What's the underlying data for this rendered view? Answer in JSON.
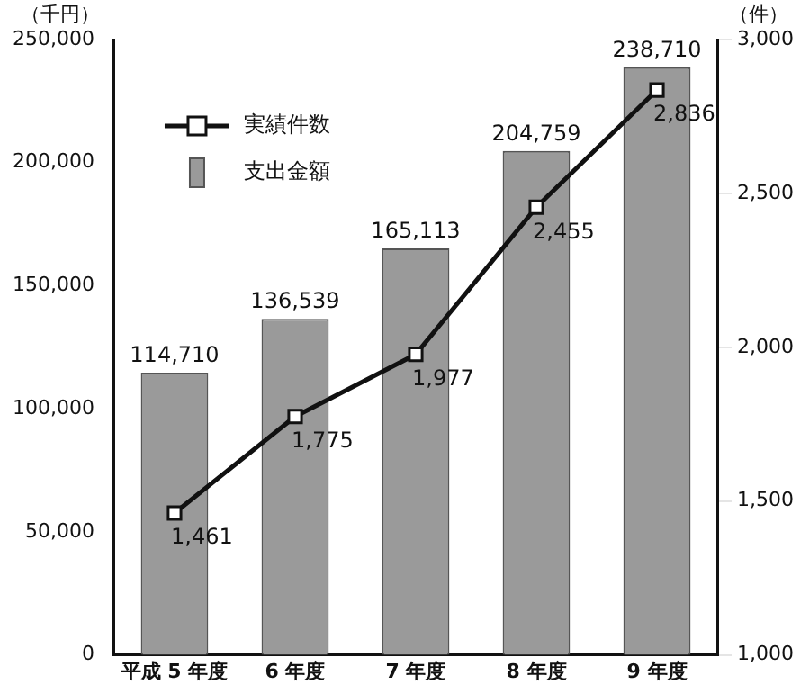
{
  "chart_data": {
    "type": "bar",
    "ylabel": "（千円）",
    "y2label": "（件）",
    "categories": [
      "平成 5 年度",
      "6 年度",
      "7 年度",
      "8 年度",
      "9 年度"
    ],
    "series": [
      {
        "name": "支出金額",
        "color": "#9a9a9a",
        "values": [
          114710,
          136539,
          165113,
          204759,
          238710
        ],
        "value_labels": [
          "114,710",
          "136,539",
          "165,113",
          "204,759",
          "238,710"
        ]
      },
      {
        "name": "実績件数",
        "type": "line",
        "axis": "y2",
        "color": "#111111",
        "marker": "square",
        "values": [
          1461,
          1775,
          1977,
          2455,
          2836
        ],
        "value_labels": [
          "1,461",
          "1,775",
          "1,977",
          "2,455",
          "2,836"
        ]
      }
    ],
    "ylim": [
      0,
      250000
    ],
    "yticks": [
      0,
      {
        "value": 50000,
        "label": "50,000"
      },
      {
        "value": 100000,
        "label": "100,000"
      },
      {
        "value": 150000,
        "label": "150,000"
      },
      {
        "value": 200000,
        "label": "200,000"
      },
      {
        "value": 250000,
        "label": "250,000"
      }
    ],
    "y2lim": [
      1000,
      3000
    ],
    "y2ticks": [
      {
        "value": 1000,
        "label": "1,000"
      },
      {
        "value": 1500,
        "label": "1,500"
      },
      {
        "value": 2000,
        "label": "2,000"
      },
      {
        "value": 2500,
        "label": "2,500"
      },
      {
        "value": 3000,
        "label": "3,000"
      }
    ],
    "legend": "top left",
    "grid": false
  }
}
